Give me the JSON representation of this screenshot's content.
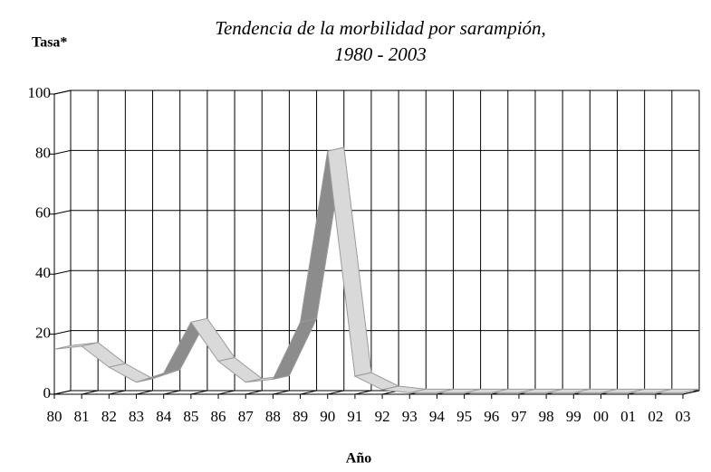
{
  "chart_data": {
    "type": "line3d",
    "title": [
      "Tendencia de la morbilidad por sarampión,",
      "1980 - 2003"
    ],
    "y_label": "Tasa*",
    "x_label": "Año",
    "categories": [
      "80",
      "81",
      "82",
      "83",
      "84",
      "85",
      "86",
      "87",
      "88",
      "89",
      "90",
      "91",
      "92",
      "93",
      "94",
      "95",
      "96",
      "97",
      "98",
      "99",
      "00",
      "01",
      "02",
      "03"
    ],
    "values": [
      15,
      16,
      9,
      4,
      7,
      24,
      11,
      4,
      5,
      24,
      81,
      6,
      1.5,
      0.5,
      0.5,
      0.5,
      0.5,
      0.5,
      0.5,
      0.5,
      0.5,
      0.5,
      0.5,
      0.5
    ],
    "color": "#d9d9d9",
    "ylim": [
      0,
      100
    ],
    "yticks": [
      0,
      20,
      40,
      60,
      80,
      100
    ],
    "grid": true
  }
}
